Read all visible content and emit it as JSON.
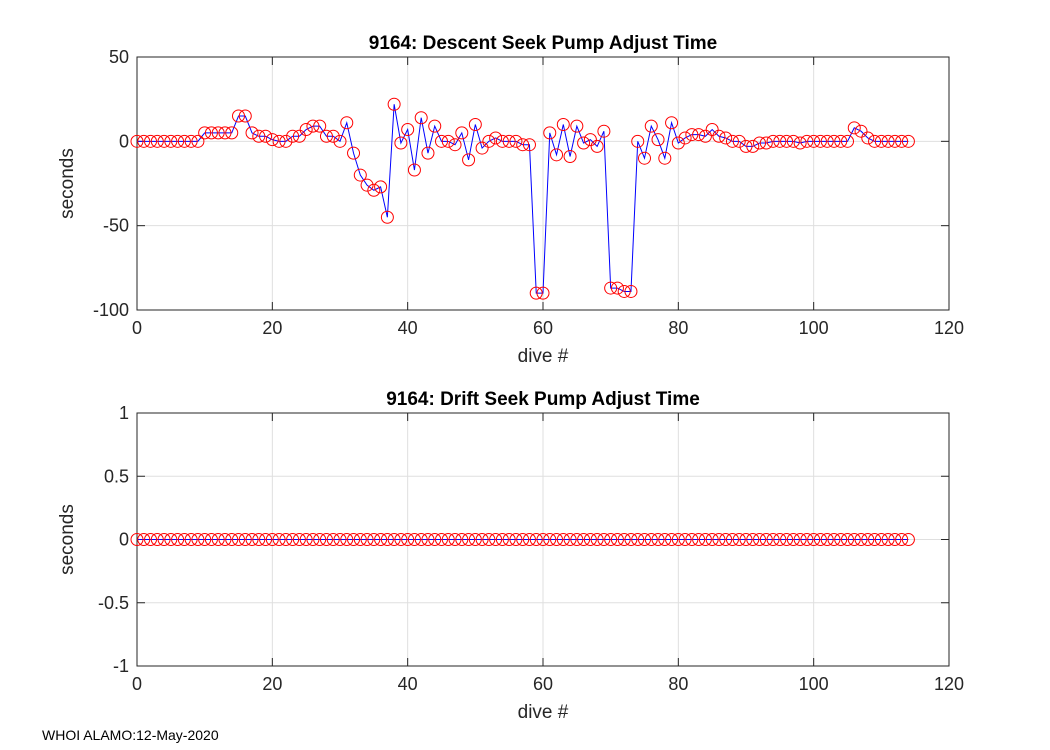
{
  "chart_data": [
    {
      "type": "line",
      "title": "9164: Descent Seek Pump Adjust Time",
      "xlabel": "dive #",
      "ylabel": "seconds",
      "xlim": [
        0,
        120
      ],
      "ylim": [
        -100,
        50
      ],
      "xticks": [
        0,
        20,
        40,
        60,
        80,
        100,
        120
      ],
      "yticks": [
        -100,
        -50,
        0,
        50
      ],
      "grid": true,
      "series": [
        {
          "name": "descent",
          "line_color": "#0000ff",
          "marker_color": "#ff0000",
          "x_start": 0,
          "values": [
            0,
            0,
            0,
            0,
            0,
            0,
            0,
            0,
            0,
            0,
            5,
            5,
            5,
            5,
            5,
            15,
            15,
            5,
            3,
            3,
            1,
            0,
            0,
            3,
            3,
            7,
            9,
            9,
            3,
            3,
            0,
            11,
            -7,
            -20,
            -26,
            -29,
            -27,
            -45,
            22,
            -1,
            7,
            -17,
            14,
            -7,
            9,
            0,
            0,
            -2,
            5,
            -11,
            10,
            -4,
            0,
            2,
            0,
            0,
            0,
            -2,
            -2,
            -90,
            -90,
            5,
            -8,
            10,
            -9,
            9,
            -1,
            1,
            -3,
            6,
            -87,
            -87,
            -89,
            -89,
            0,
            -10,
            9,
            1,
            -10,
            11,
            -1,
            2,
            4,
            4,
            3,
            7,
            3,
            2,
            0,
            0,
            -3,
            -3,
            -1,
            -1,
            0,
            0,
            0,
            0,
            -1,
            0,
            0,
            0,
            0,
            0,
            0,
            0,
            8,
            6,
            2,
            0,
            0,
            0,
            0,
            0,
            0
          ]
        }
      ]
    },
    {
      "type": "line",
      "title": "9164: Drift Seek Pump Adjust Time",
      "xlabel": "dive #",
      "ylabel": "seconds",
      "xlim": [
        0,
        120
      ],
      "ylim": [
        -1,
        1
      ],
      "xticks": [
        0,
        20,
        40,
        60,
        80,
        100,
        120
      ],
      "yticks": [
        -1,
        -0.5,
        0,
        0.5,
        1
      ],
      "grid": true,
      "series": [
        {
          "name": "drift",
          "line_color": "#0000ff",
          "marker_color": "#ff0000",
          "x_start": 0,
          "values": [
            0,
            0,
            0,
            0,
            0,
            0,
            0,
            0,
            0,
            0,
            0,
            0,
            0,
            0,
            0,
            0,
            0,
            0,
            0,
            0,
            0,
            0,
            0,
            0,
            0,
            0,
            0,
            0,
            0,
            0,
            0,
            0,
            0,
            0,
            0,
            0,
            0,
            0,
            0,
            0,
            0,
            0,
            0,
            0,
            0,
            0,
            0,
            0,
            0,
            0,
            0,
            0,
            0,
            0,
            0,
            0,
            0,
            0,
            0,
            0,
            0,
            0,
            0,
            0,
            0,
            0,
            0,
            0,
            0,
            0,
            0,
            0,
            0,
            0,
            0,
            0,
            0,
            0,
            0,
            0,
            0,
            0,
            0,
            0,
            0,
            0,
            0,
            0,
            0,
            0,
            0,
            0,
            0,
            0,
            0,
            0,
            0,
            0,
            0,
            0,
            0,
            0,
            0,
            0,
            0,
            0,
            0,
            0,
            0,
            0,
            0,
            0,
            0,
            0,
            0
          ]
        }
      ]
    }
  ],
  "footer": "WHOI ALAMO:12-May-2020"
}
